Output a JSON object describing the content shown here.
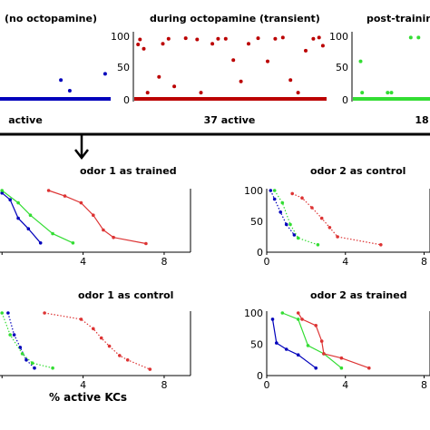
{
  "top_row": {
    "panels": [
      {
        "title": "(no octopamine)",
        "count_label": "active",
        "color": "#0000bb"
      },
      {
        "title": "during octopamine (transient)",
        "count_label": "37 active",
        "color": "#bb0000"
      },
      {
        "title": "post-trainin",
        "count_label": "18",
        "color": "#33dd33"
      }
    ],
    "y_ticks": [
      "100",
      "50",
      "0"
    ]
  },
  "bottom_row": {
    "panels": [
      {
        "title": "odor 1 as trained"
      },
      {
        "title": "odor 2 as control"
      },
      {
        "title": "odor 1 as control"
      },
      {
        "title": "odor 2 as trained"
      }
    ],
    "x_axis_label": "% active KCs",
    "x_ticks": [
      "0",
      "4",
      "8"
    ],
    "y_ticks": [
      "100",
      "50",
      "0"
    ]
  },
  "chart_data": [
    {
      "type": "scatter",
      "title": "(no octopamine)",
      "ylim": [
        0,
        100
      ],
      "series": [
        {
          "name": "",
          "color": "#0000bb",
          "points": [
            {
              "x": 0.55,
              "y": 30
            },
            {
              "x": 0.63,
              "y": 13
            },
            {
              "x": 0.95,
              "y": 40
            }
          ]
        }
      ]
    },
    {
      "type": "scatter",
      "title": "during octopamine (transient)",
      "ylim": [
        0,
        100
      ],
      "series": [
        {
          "name": "",
          "color": "#bb0000",
          "points": [
            {
              "x": 0.02,
              "y": 87
            },
            {
              "x": 0.03,
              "y": 95
            },
            {
              "x": 0.05,
              "y": 80
            },
            {
              "x": 0.07,
              "y": 10
            },
            {
              "x": 0.15,
              "y": 88
            },
            {
              "x": 0.18,
              "y": 96
            },
            {
              "x": 0.21,
              "y": 20
            },
            {
              "x": 0.27,
              "y": 97
            },
            {
              "x": 0.33,
              "y": 95
            },
            {
              "x": 0.35,
              "y": 10
            },
            {
              "x": 0.41,
              "y": 88
            },
            {
              "x": 0.44,
              "y": 96
            },
            {
              "x": 0.48,
              "y": 96
            },
            {
              "x": 0.52,
              "y": 62
            },
            {
              "x": 0.56,
              "y": 28
            },
            {
              "x": 0.6,
              "y": 88
            },
            {
              "x": 0.65,
              "y": 97
            },
            {
              "x": 0.7,
              "y": 60
            },
            {
              "x": 0.74,
              "y": 96
            },
            {
              "x": 0.78,
              "y": 98
            },
            {
              "x": 0.82,
              "y": 30
            },
            {
              "x": 0.86,
              "y": 10
            },
            {
              "x": 0.9,
              "y": 77
            },
            {
              "x": 0.94,
              "y": 96
            },
            {
              "x": 0.97,
              "y": 98
            },
            {
              "x": 0.99,
              "y": 85
            },
            {
              "x": 0.13,
              "y": 35
            }
          ]
        }
      ]
    },
    {
      "type": "scatter",
      "title": "post-trainin",
      "ylim": [
        0,
        100
      ],
      "series": [
        {
          "name": "",
          "color": "#33dd33",
          "points": [
            {
              "x": 0.1,
              "y": 60
            },
            {
              "x": 0.12,
              "y": 10
            },
            {
              "x": 0.45,
              "y": 10
            },
            {
              "x": 0.5,
              "y": 10
            },
            {
              "x": 0.75,
              "y": 98
            },
            {
              "x": 0.85,
              "y": 98
            }
          ]
        }
      ]
    },
    {
      "type": "line",
      "title": "odor 1 as trained",
      "xlim": [
        0,
        9
      ],
      "ylim": [
        0,
        100
      ],
      "series": [
        {
          "name": "",
          "color": "#0000bb",
          "style": "solid",
          "points": [
            {
              "x": 0,
              "y": 96
            },
            {
              "x": 0.4,
              "y": 85
            },
            {
              "x": 0.8,
              "y": 55
            },
            {
              "x": 1.3,
              "y": 38
            },
            {
              "x": 1.9,
              "y": 15
            }
          ]
        },
        {
          "name": "",
          "color": "#33dd33",
          "style": "solid",
          "points": [
            {
              "x": 0,
              "y": 100
            },
            {
              "x": 0.8,
              "y": 80
            },
            {
              "x": 1.4,
              "y": 60
            },
            {
              "x": 2.5,
              "y": 30
            },
            {
              "x": 3.5,
              "y": 15
            }
          ]
        },
        {
          "name": "",
          "color": "#dd3333",
          "style": "solid",
          "points": [
            {
              "x": 2.3,
              "y": 100
            },
            {
              "x": 3.1,
              "y": 91
            },
            {
              "x": 3.9,
              "y": 80
            },
            {
              "x": 4.5,
              "y": 60
            },
            {
              "x": 5.0,
              "y": 36
            },
            {
              "x": 5.5,
              "y": 24
            },
            {
              "x": 7.1,
              "y": 14
            }
          ]
        }
      ]
    },
    {
      "type": "line",
      "title": "odor 2 as control",
      "xlim": [
        0,
        9
      ],
      "ylim": [
        0,
        100
      ],
      "series": [
        {
          "name": "",
          "color": "#0000bb",
          "style": "dotted",
          "points": [
            {
              "x": 0.2,
              "y": 100
            },
            {
              "x": 0.4,
              "y": 86
            },
            {
              "x": 0.7,
              "y": 65
            },
            {
              "x": 1.0,
              "y": 45
            },
            {
              "x": 1.4,
              "y": 28
            }
          ]
        },
        {
          "name": "",
          "color": "#33dd33",
          "style": "dotted",
          "points": [
            {
              "x": 0.4,
              "y": 100
            },
            {
              "x": 0.8,
              "y": 80
            },
            {
              "x": 1.2,
              "y": 45
            },
            {
              "x": 1.6,
              "y": 23
            },
            {
              "x": 2.6,
              "y": 12
            }
          ]
        },
        {
          "name": "",
          "color": "#dd3333",
          "style": "dotted",
          "points": [
            {
              "x": 1.3,
              "y": 95
            },
            {
              "x": 1.8,
              "y": 88
            },
            {
              "x": 2.3,
              "y": 72
            },
            {
              "x": 2.8,
              "y": 55
            },
            {
              "x": 3.2,
              "y": 40
            },
            {
              "x": 3.6,
              "y": 25
            },
            {
              "x": 5.8,
              "y": 12
            }
          ]
        }
      ]
    },
    {
      "type": "line",
      "title": "odor 1 as control",
      "xlim": [
        0,
        9
      ],
      "ylim": [
        0,
        100
      ],
      "series": [
        {
          "name": "",
          "color": "#0000bb",
          "style": "dotted",
          "points": [
            {
              "x": 0.3,
              "y": 100
            },
            {
              "x": 0.6,
              "y": 65
            },
            {
              "x": 0.9,
              "y": 45
            },
            {
              "x": 1.2,
              "y": 25
            },
            {
              "x": 1.6,
              "y": 12
            }
          ]
        },
        {
          "name": "",
          "color": "#33dd33",
          "style": "dotted",
          "points": [
            {
              "x": 0,
              "y": 100
            },
            {
              "x": 0.4,
              "y": 65
            },
            {
              "x": 1.0,
              "y": 35
            },
            {
              "x": 1.5,
              "y": 20
            },
            {
              "x": 2.5,
              "y": 12
            }
          ]
        },
        {
          "name": "",
          "color": "#dd3333",
          "style": "dotted",
          "points": [
            {
              "x": 2.1,
              "y": 100
            },
            {
              "x": 3.9,
              "y": 90
            },
            {
              "x": 4.5,
              "y": 75
            },
            {
              "x": 4.9,
              "y": 60
            },
            {
              "x": 5.3,
              "y": 47
            },
            {
              "x": 5.8,
              "y": 32
            },
            {
              "x": 6.2,
              "y": 25
            },
            {
              "x": 7.3,
              "y": 10
            }
          ]
        }
      ]
    },
    {
      "type": "line",
      "title": "odor 2 as trained",
      "xlim": [
        0,
        9
      ],
      "ylim": [
        0,
        100
      ],
      "series": [
        {
          "name": "",
          "color": "#0000bb",
          "style": "solid",
          "points": [
            {
              "x": 0.3,
              "y": 90
            },
            {
              "x": 0.5,
              "y": 52
            },
            {
              "x": 1.0,
              "y": 42
            },
            {
              "x": 1.6,
              "y": 33
            },
            {
              "x": 2.5,
              "y": 12
            }
          ]
        },
        {
          "name": "",
          "color": "#33dd33",
          "style": "solid",
          "points": [
            {
              "x": 0.8,
              "y": 100
            },
            {
              "x": 1.6,
              "y": 90
            },
            {
              "x": 2.1,
              "y": 48
            },
            {
              "x": 2.9,
              "y": 35
            },
            {
              "x": 3.8,
              "y": 12
            }
          ]
        },
        {
          "name": "",
          "color": "#dd3333",
          "style": "solid",
          "points": [
            {
              "x": 1.6,
              "y": 100
            },
            {
              "x": 1.8,
              "y": 90
            },
            {
              "x": 2.5,
              "y": 80
            },
            {
              "x": 2.8,
              "y": 55
            },
            {
              "x": 2.9,
              "y": 35
            },
            {
              "x": 3.8,
              "y": 28
            },
            {
              "x": 5.2,
              "y": 12
            }
          ]
        }
      ]
    }
  ]
}
